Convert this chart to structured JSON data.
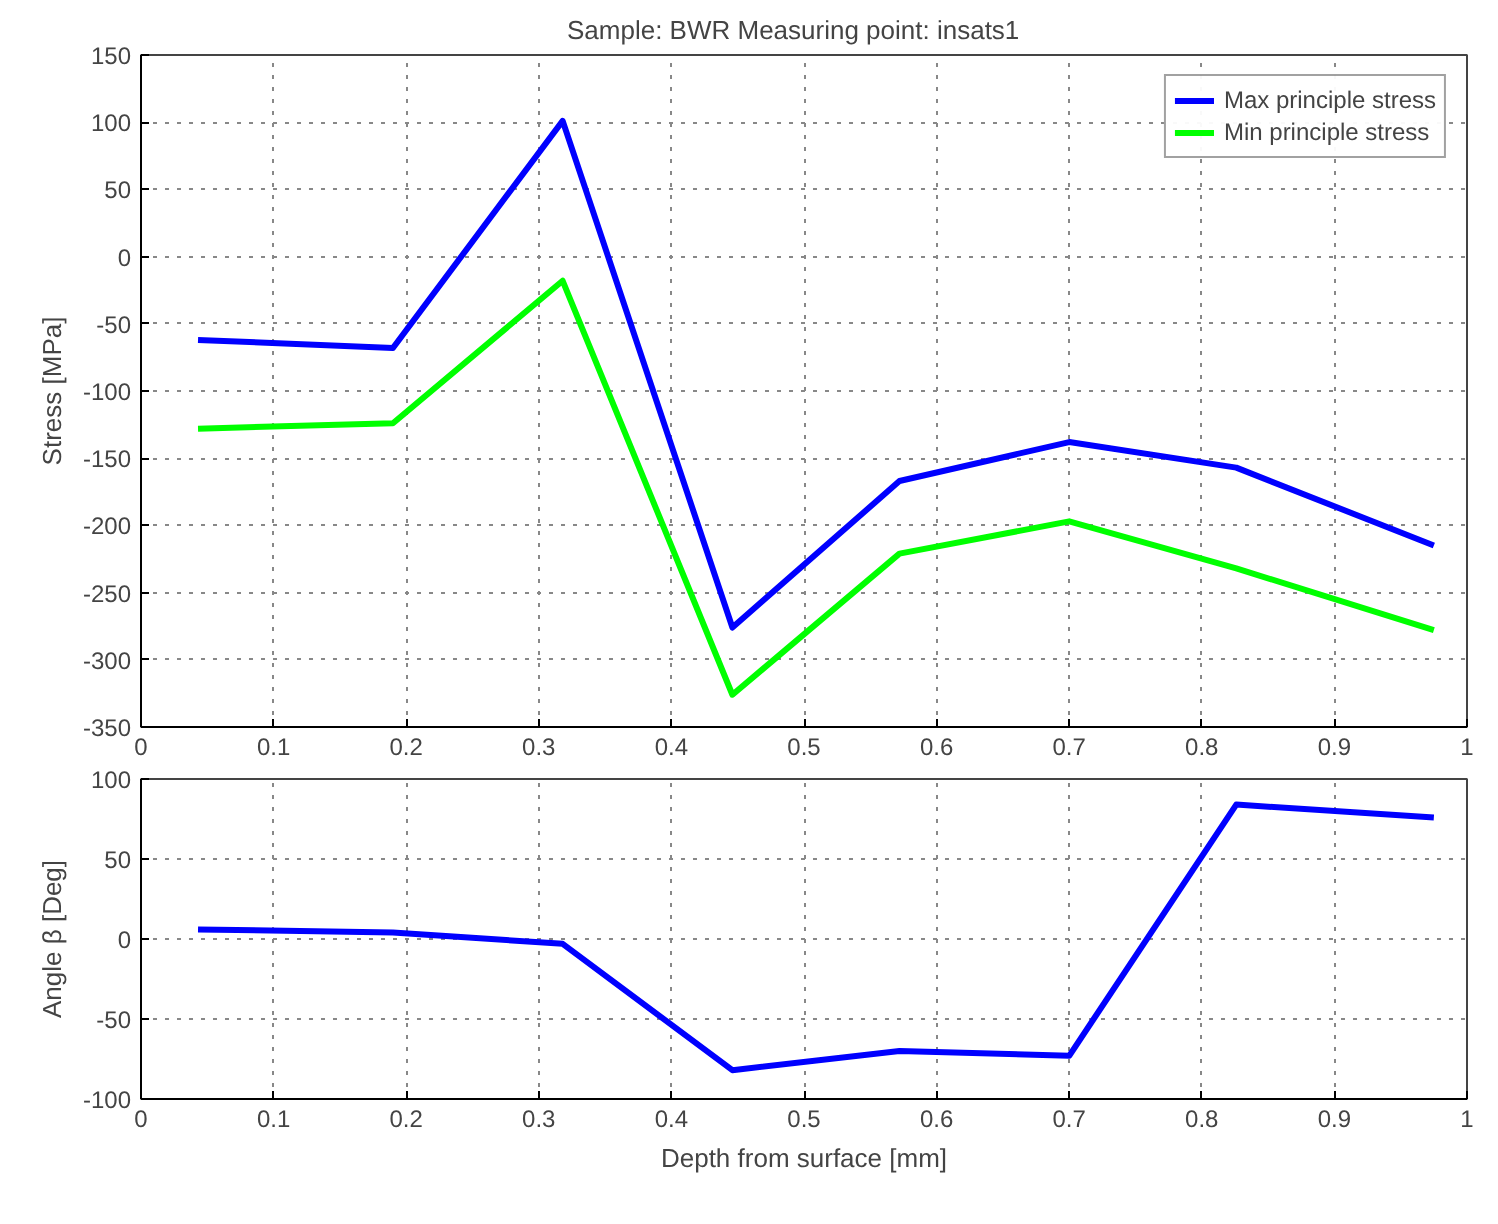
{
  "chart_data": [
    {
      "type": "line",
      "title": "Sample: BWR    Measuring point: insats1",
      "ylabel": "Stress [MPa]",
      "x": [
        0.043,
        0.19,
        0.318,
        0.446,
        0.572,
        0.7,
        0.826,
        0.975
      ],
      "series": [
        {
          "name": "Max principle stress",
          "color": "#0000ff",
          "values": [
            -62,
            -68,
            101,
            -276,
            -167,
            -138,
            -157,
            -215
          ]
        },
        {
          "name": "Min principle stress",
          "color": "#00ff00",
          "values": [
            -128,
            -124,
            -18,
            -326,
            -221,
            -197,
            -232,
            -278
          ]
        }
      ],
      "xlim": [
        0,
        1
      ],
      "xticks": [
        0,
        0.1,
        0.2,
        0.3,
        0.4,
        0.5,
        0.6,
        0.7,
        0.8,
        0.9,
        1
      ],
      "ylim": [
        -350,
        150
      ],
      "yticks": [
        -350,
        -300,
        -250,
        -200,
        -150,
        -100,
        -50,
        0,
        50,
        100,
        150
      ],
      "grid": true,
      "legend": "top right",
      "line_style": "solid"
    },
    {
      "type": "line",
      "xlabel": "Depth from surface [mm]",
      "ylabel": "Angle β [Deg]",
      "x": [
        0.043,
        0.19,
        0.318,
        0.446,
        0.572,
        0.7,
        0.826,
        0.975
      ],
      "series": [
        {
          "color": "#0000ff",
          "values": [
            6,
            4,
            -3,
            -82,
            -70,
            -73,
            84,
            76
          ]
        }
      ],
      "xlim": [
        0,
        1
      ],
      "xticks": [
        0,
        0.1,
        0.2,
        0.3,
        0.4,
        0.5,
        0.6,
        0.7,
        0.8,
        0.9,
        1
      ],
      "ylim": [
        -100,
        100
      ],
      "yticks": [
        -100,
        -50,
        0,
        50,
        100
      ],
      "grid": true,
      "legend": false,
      "line_style": "solid"
    }
  ]
}
